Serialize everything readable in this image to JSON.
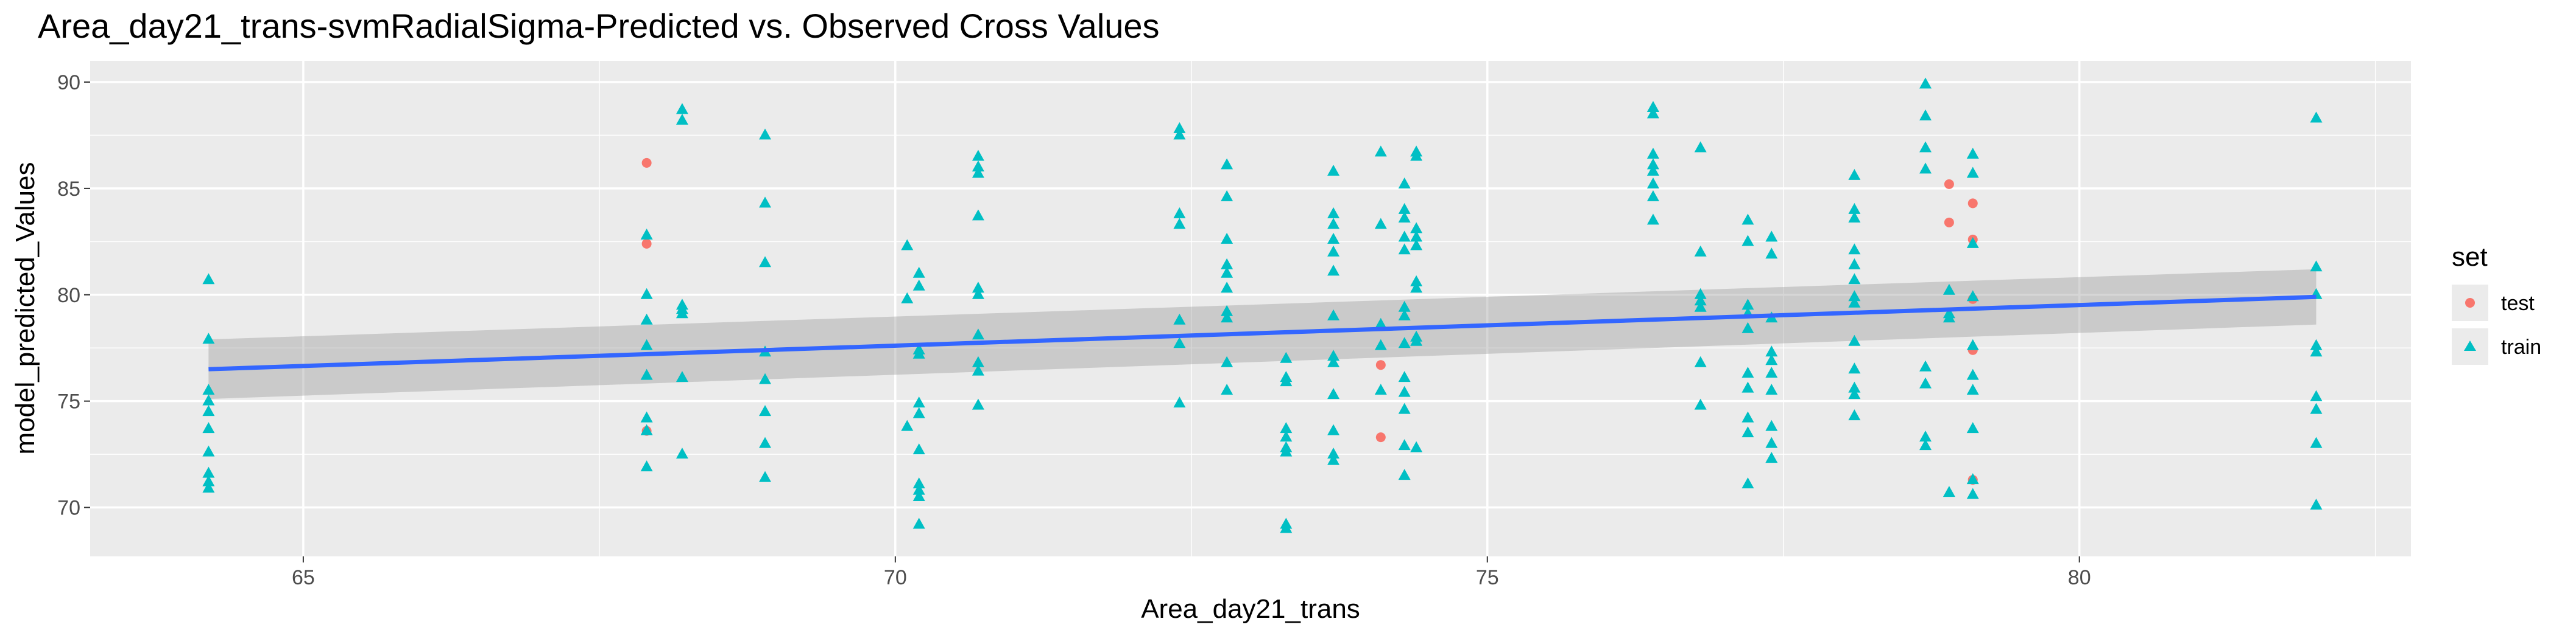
{
  "chart_data": {
    "type": "scatter",
    "title": "Area_day21_trans-svmRadialSigma-Predicted vs. Observed Cross Values",
    "xlabel": "Area_day21_trans",
    "ylabel": "model_predicted_Values",
    "xlim": [
      63.2,
      82.8
    ],
    "ylim": [
      67.7,
      91.0
    ],
    "x_ticks": [
      65,
      70,
      75,
      80
    ],
    "y_ticks": [
      70,
      75,
      80,
      85,
      90
    ],
    "x_tick_labels": [
      "65",
      "70",
      "75",
      "80"
    ],
    "y_tick_labels": [
      "70",
      "75",
      "80",
      "85",
      "90"
    ],
    "grid": true,
    "legend": {
      "title": "set",
      "position": "right",
      "entries": [
        {
          "label": "test",
          "shape": "circle",
          "color": "#F8766D"
        },
        {
          "label": "train",
          "shape": "triangle",
          "color": "#00BFC4"
        }
      ]
    },
    "series": [
      {
        "name": "test",
        "shape": "circle",
        "color": "#F8766D",
        "points": [
          [
            67.9,
            86.2
          ],
          [
            67.9,
            82.4
          ],
          [
            67.9,
            73.6
          ],
          [
            74.1,
            76.7
          ],
          [
            74.1,
            73.3
          ],
          [
            78.9,
            85.2
          ],
          [
            78.9,
            83.4
          ],
          [
            79.1,
            84.3
          ],
          [
            79.1,
            82.6
          ],
          [
            79.1,
            79.8
          ],
          [
            79.1,
            77.4
          ],
          [
            79.1,
            71.3
          ]
        ]
      },
      {
        "name": "train",
        "shape": "triangle",
        "color": "#00BFC4",
        "points": [
          [
            64.2,
            80.7
          ],
          [
            64.2,
            77.9
          ],
          [
            64.2,
            75.5
          ],
          [
            64.2,
            75.0
          ],
          [
            64.2,
            74.5
          ],
          [
            64.2,
            73.7
          ],
          [
            64.2,
            72.6
          ],
          [
            64.2,
            71.6
          ],
          [
            64.2,
            71.2
          ],
          [
            64.2,
            70.9
          ],
          [
            67.9,
            82.8
          ],
          [
            67.9,
            80.0
          ],
          [
            67.9,
            78.8
          ],
          [
            67.9,
            77.6
          ],
          [
            67.9,
            76.2
          ],
          [
            67.9,
            74.2
          ],
          [
            67.9,
            73.6
          ],
          [
            67.9,
            71.9
          ],
          [
            68.2,
            88.7
          ],
          [
            68.2,
            88.2
          ],
          [
            68.2,
            79.5
          ],
          [
            68.2,
            79.3
          ],
          [
            68.2,
            79.1
          ],
          [
            68.2,
            76.1
          ],
          [
            68.2,
            72.5
          ],
          [
            68.9,
            87.5
          ],
          [
            68.9,
            84.3
          ],
          [
            68.9,
            81.5
          ],
          [
            68.9,
            77.3
          ],
          [
            68.9,
            76.0
          ],
          [
            68.9,
            74.5
          ],
          [
            68.9,
            73.0
          ],
          [
            68.9,
            71.4
          ],
          [
            70.1,
            82.3
          ],
          [
            70.1,
            79.8
          ],
          [
            70.1,
            73.8
          ],
          [
            70.2,
            81.0
          ],
          [
            70.2,
            80.4
          ],
          [
            70.2,
            77.4
          ],
          [
            70.2,
            77.2
          ],
          [
            70.2,
            74.9
          ],
          [
            70.2,
            74.4
          ],
          [
            70.2,
            72.7
          ],
          [
            70.2,
            71.1
          ],
          [
            70.2,
            70.8
          ],
          [
            70.2,
            70.5
          ],
          [
            70.2,
            69.2
          ],
          [
            70.7,
            86.5
          ],
          [
            70.7,
            86.0
          ],
          [
            70.7,
            85.7
          ],
          [
            70.7,
            83.7
          ],
          [
            70.7,
            80.3
          ],
          [
            70.7,
            80.0
          ],
          [
            70.7,
            78.1
          ],
          [
            70.7,
            76.8
          ],
          [
            70.7,
            76.4
          ],
          [
            70.7,
            74.8
          ],
          [
            72.4,
            87.8
          ],
          [
            72.4,
            87.5
          ],
          [
            72.4,
            83.8
          ],
          [
            72.4,
            83.3
          ],
          [
            72.4,
            78.8
          ],
          [
            72.4,
            77.7
          ],
          [
            72.4,
            74.9
          ],
          [
            72.8,
            86.1
          ],
          [
            72.8,
            84.6
          ],
          [
            72.8,
            82.6
          ],
          [
            72.8,
            81.4
          ],
          [
            72.8,
            81.0
          ],
          [
            72.8,
            80.3
          ],
          [
            72.8,
            79.2
          ],
          [
            72.8,
            78.9
          ],
          [
            72.8,
            76.8
          ],
          [
            72.8,
            75.5
          ],
          [
            73.3,
            77.0
          ],
          [
            73.3,
            76.1
          ],
          [
            73.3,
            75.9
          ],
          [
            73.3,
            73.7
          ],
          [
            73.3,
            73.3
          ],
          [
            73.3,
            72.8
          ],
          [
            73.3,
            72.6
          ],
          [
            73.3,
            69.2
          ],
          [
            73.3,
            69.0
          ],
          [
            73.7,
            85.8
          ],
          [
            73.7,
            83.8
          ],
          [
            73.7,
            83.3
          ],
          [
            73.7,
            82.6
          ],
          [
            73.7,
            82.0
          ],
          [
            73.7,
            81.1
          ],
          [
            73.7,
            79.0
          ],
          [
            73.7,
            77.1
          ],
          [
            73.7,
            76.8
          ],
          [
            73.7,
            75.3
          ],
          [
            73.7,
            73.6
          ],
          [
            73.7,
            72.5
          ],
          [
            73.7,
            72.2
          ],
          [
            74.1,
            86.7
          ],
          [
            74.1,
            83.3
          ],
          [
            74.1,
            78.6
          ],
          [
            74.1,
            77.6
          ],
          [
            74.1,
            75.5
          ],
          [
            74.3,
            85.2
          ],
          [
            74.3,
            84.0
          ],
          [
            74.3,
            83.6
          ],
          [
            74.3,
            82.7
          ],
          [
            74.3,
            82.1
          ],
          [
            74.3,
            79.4
          ],
          [
            74.3,
            79.0
          ],
          [
            74.3,
            77.7
          ],
          [
            74.3,
            76.1
          ],
          [
            74.3,
            75.4
          ],
          [
            74.3,
            74.6
          ],
          [
            74.3,
            72.9
          ],
          [
            74.3,
            71.5
          ],
          [
            74.4,
            86.7
          ],
          [
            74.4,
            86.5
          ],
          [
            74.4,
            83.1
          ],
          [
            74.4,
            82.7
          ],
          [
            74.4,
            82.3
          ],
          [
            74.4,
            80.6
          ],
          [
            74.4,
            80.3
          ],
          [
            74.4,
            78.0
          ],
          [
            74.4,
            77.8
          ],
          [
            74.4,
            72.8
          ],
          [
            76.4,
            88.8
          ],
          [
            76.4,
            88.5
          ],
          [
            76.4,
            86.6
          ],
          [
            76.4,
            86.1
          ],
          [
            76.4,
            85.8
          ],
          [
            76.4,
            85.2
          ],
          [
            76.4,
            84.6
          ],
          [
            76.4,
            83.5
          ],
          [
            76.8,
            86.9
          ],
          [
            76.8,
            82.0
          ],
          [
            76.8,
            80.0
          ],
          [
            76.8,
            79.7
          ],
          [
            76.8,
            79.4
          ],
          [
            76.8,
            76.8
          ],
          [
            76.8,
            74.8
          ],
          [
            77.2,
            83.5
          ],
          [
            77.2,
            82.5
          ],
          [
            77.2,
            79.5
          ],
          [
            77.2,
            79.1
          ],
          [
            77.2,
            78.4
          ],
          [
            77.2,
            76.3
          ],
          [
            77.2,
            75.6
          ],
          [
            77.2,
            74.2
          ],
          [
            77.2,
            73.5
          ],
          [
            77.2,
            71.1
          ],
          [
            77.4,
            82.7
          ],
          [
            77.4,
            81.9
          ],
          [
            77.4,
            78.9
          ],
          [
            77.4,
            77.3
          ],
          [
            77.4,
            76.9
          ],
          [
            77.4,
            76.3
          ],
          [
            77.4,
            75.5
          ],
          [
            77.4,
            73.8
          ],
          [
            77.4,
            73.0
          ],
          [
            77.4,
            72.3
          ],
          [
            78.1,
            85.6
          ],
          [
            78.1,
            84.0
          ],
          [
            78.1,
            83.6
          ],
          [
            78.1,
            82.1
          ],
          [
            78.1,
            81.4
          ],
          [
            78.1,
            80.7
          ],
          [
            78.1,
            79.9
          ],
          [
            78.1,
            79.6
          ],
          [
            78.1,
            77.8
          ],
          [
            78.1,
            76.5
          ],
          [
            78.1,
            75.6
          ],
          [
            78.1,
            75.3
          ],
          [
            78.1,
            74.3
          ],
          [
            78.7,
            89.9
          ],
          [
            78.7,
            88.4
          ],
          [
            78.7,
            86.9
          ],
          [
            78.7,
            85.9
          ],
          [
            78.7,
            76.6
          ],
          [
            78.7,
            75.8
          ],
          [
            78.7,
            73.3
          ],
          [
            78.7,
            72.9
          ],
          [
            78.9,
            80.2
          ],
          [
            78.9,
            79.1
          ],
          [
            78.9,
            78.9
          ],
          [
            78.9,
            70.7
          ],
          [
            79.1,
            86.6
          ],
          [
            79.1,
            85.7
          ],
          [
            79.1,
            82.4
          ],
          [
            79.1,
            79.9
          ],
          [
            79.1,
            77.6
          ],
          [
            79.1,
            76.2
          ],
          [
            79.1,
            75.5
          ],
          [
            79.1,
            73.7
          ],
          [
            79.1,
            71.3
          ],
          [
            79.1,
            70.6
          ],
          [
            82.0,
            88.3
          ],
          [
            82.0,
            81.3
          ],
          [
            82.0,
            80.0
          ],
          [
            82.0,
            77.6
          ],
          [
            82.0,
            77.3
          ],
          [
            82.0,
            75.2
          ],
          [
            82.0,
            74.6
          ],
          [
            82.0,
            73.0
          ],
          [
            82.0,
            70.1
          ]
        ]
      }
    ],
    "fit": {
      "method": "linear",
      "color": "#3366FF",
      "x": [
        64.2,
        82.0
      ],
      "y": [
        76.5,
        79.9
      ],
      "ci_lower": [
        75.1,
        78.6
      ],
      "ci_upper": [
        77.9,
        81.2
      ]
    }
  }
}
